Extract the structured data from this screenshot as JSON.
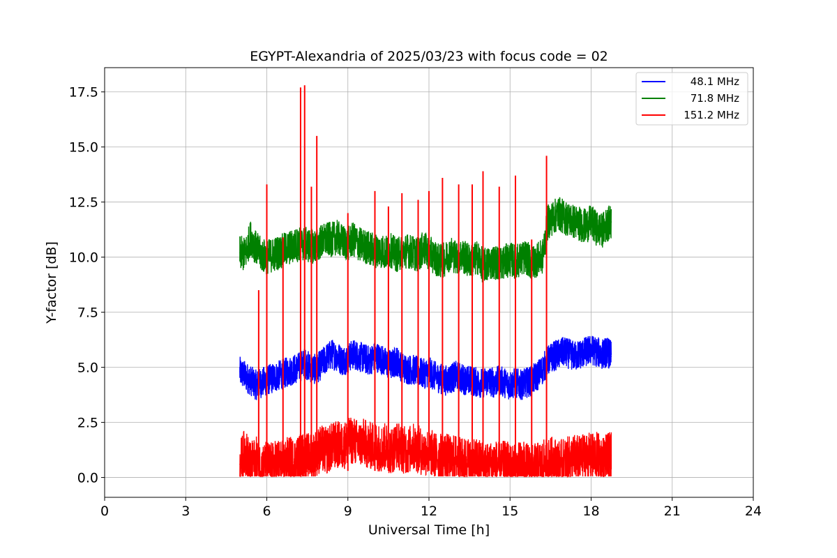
{
  "chart_data": {
    "type": "line",
    "title": "EGYPT-Alexandria of 2025/03/23 with focus code = 02",
    "xlabel": "Universal Time [h]",
    "ylabel": "Y-factor [dB]",
    "xlim": [
      0,
      24
    ],
    "ylim": [
      -0.9,
      18.6
    ],
    "xticks": [
      "0",
      "3",
      "6",
      "9",
      "12",
      "15",
      "18",
      "21",
      "24"
    ],
    "yticks": [
      "0.0",
      "2.5",
      "5.0",
      "7.5",
      "10.0",
      "12.5",
      "15.0",
      "17.5"
    ],
    "grid": true,
    "legend_position": "top-right",
    "series": [
      {
        "name": "48.1 MHz",
        "color": "#0000ff",
        "x": [
          5.0,
          5.2,
          5.4,
          5.6,
          5.8,
          6.0,
          6.2,
          6.4,
          6.6,
          6.8,
          7.0,
          7.2,
          7.4,
          7.6,
          7.8,
          8.0,
          8.2,
          8.4,
          8.6,
          8.8,
          9.0,
          9.2,
          9.4,
          9.6,
          9.8,
          10.0,
          10.2,
          10.4,
          10.6,
          10.8,
          11.0,
          11.2,
          11.4,
          11.6,
          11.8,
          12.0,
          12.2,
          12.4,
          12.6,
          12.8,
          13.0,
          13.2,
          13.4,
          13.6,
          13.8,
          14.0,
          14.2,
          14.4,
          14.6,
          14.8,
          15.0,
          15.2,
          15.4,
          15.6,
          15.8,
          16.0,
          16.2,
          16.4,
          16.6,
          16.8,
          17.0,
          17.2,
          17.4,
          17.6,
          17.8,
          18.0,
          18.2,
          18.4,
          18.6,
          18.75
        ],
        "y": [
          4.8,
          4.6,
          4.4,
          4.2,
          4.3,
          4.4,
          4.5,
          4.6,
          4.7,
          4.8,
          4.9,
          5.0,
          5.2,
          5.0,
          4.9,
          5.1,
          5.4,
          5.6,
          5.5,
          5.3,
          5.4,
          5.6,
          5.5,
          5.4,
          5.3,
          5.5,
          5.4,
          5.2,
          5.1,
          5.3,
          5.0,
          4.9,
          4.9,
          4.8,
          4.7,
          4.8,
          4.6,
          4.5,
          4.4,
          4.5,
          4.6,
          4.5,
          4.4,
          4.4,
          4.3,
          4.3,
          4.4,
          4.3,
          4.4,
          4.3,
          4.2,
          4.3,
          4.2,
          4.3,
          4.4,
          4.6,
          4.9,
          5.3,
          5.5,
          5.6,
          5.7,
          5.6,
          5.5,
          5.6,
          5.7,
          5.8,
          5.7,
          5.6,
          5.7,
          5.5
        ]
      },
      {
        "name": "71.8 MHz",
        "color": "#008000",
        "x": [
          5.0,
          5.2,
          5.4,
          5.6,
          5.8,
          6.0,
          6.2,
          6.4,
          6.6,
          6.8,
          7.0,
          7.2,
          7.4,
          7.6,
          7.8,
          8.0,
          8.2,
          8.4,
          8.6,
          8.8,
          9.0,
          9.2,
          9.4,
          9.6,
          9.8,
          10.0,
          10.2,
          10.4,
          10.6,
          10.8,
          11.0,
          11.2,
          11.4,
          11.6,
          11.8,
          12.0,
          12.2,
          12.4,
          12.6,
          12.8,
          13.0,
          13.2,
          13.4,
          13.6,
          13.8,
          14.0,
          14.2,
          14.4,
          14.6,
          14.8,
          15.0,
          15.2,
          15.4,
          15.6,
          15.8,
          16.0,
          16.2,
          16.4,
          16.6,
          16.8,
          17.0,
          17.2,
          17.4,
          17.6,
          17.8,
          18.0,
          18.2,
          18.4,
          18.6,
          18.75
        ],
        "y": [
          10.2,
          10.1,
          10.9,
          10.4,
          10.1,
          10.0,
          10.1,
          10.2,
          10.3,
          10.4,
          10.5,
          10.6,
          10.6,
          10.5,
          10.5,
          10.7,
          10.8,
          10.8,
          10.9,
          10.7,
          10.6,
          10.8,
          10.6,
          10.5,
          10.4,
          10.3,
          10.3,
          10.2,
          10.3,
          10.1,
          10.2,
          10.3,
          10.2,
          10.1,
          10.4,
          10.2,
          10.0,
          9.8,
          9.9,
          10.2,
          10.0,
          10.1,
          9.9,
          9.8,
          10.0,
          9.6,
          9.7,
          9.8,
          9.7,
          9.8,
          9.9,
          9.8,
          9.9,
          10.0,
          9.7,
          9.9,
          10.0,
          11.6,
          11.8,
          12.0,
          11.8,
          11.7,
          11.6,
          11.5,
          11.4,
          11.6,
          11.3,
          11.2,
          11.5,
          11.6
        ]
      },
      {
        "name": "151.2 MHz",
        "color": "#ff0000",
        "x": [
          5.0,
          5.2,
          5.4,
          5.6,
          5.8,
          6.0,
          6.2,
          6.4,
          6.6,
          6.8,
          7.0,
          7.2,
          7.4,
          7.6,
          7.8,
          8.0,
          8.2,
          8.4,
          8.6,
          8.8,
          9.0,
          9.2,
          9.4,
          9.6,
          9.8,
          10.0,
          10.2,
          10.4,
          10.6,
          10.8,
          11.0,
          11.2,
          11.4,
          11.6,
          11.8,
          12.0,
          12.2,
          12.4,
          12.6,
          12.8,
          13.0,
          13.2,
          13.4,
          13.6,
          13.8,
          14.0,
          14.2,
          14.4,
          14.6,
          14.8,
          15.0,
          15.2,
          15.4,
          15.6,
          15.8,
          16.0,
          16.2,
          16.4,
          16.6,
          16.8,
          17.0,
          17.2,
          17.4,
          17.6,
          17.8,
          18.0,
          18.2,
          18.4,
          18.6,
          18.75
        ],
        "y": [
          0.6,
          1.2,
          0.5,
          0.8,
          0.4,
          0.6,
          0.5,
          0.7,
          0.6,
          0.8,
          0.7,
          0.9,
          1.0,
          0.9,
          1.1,
          1.3,
          1.2,
          1.4,
          1.5,
          1.4,
          1.6,
          1.7,
          1.5,
          1.6,
          1.4,
          1.5,
          1.3,
          1.4,
          1.2,
          1.5,
          1.3,
          1.2,
          1.4,
          1.3,
          1.1,
          1.2,
          1.0,
          0.9,
          1.0,
          0.8,
          0.9,
          0.7,
          0.8,
          0.6,
          0.7,
          0.6,
          0.5,
          0.7,
          0.5,
          0.6,
          0.5,
          0.4,
          0.6,
          0.5,
          0.4,
          0.5,
          0.6,
          0.7,
          0.8,
          0.6,
          0.7,
          0.8,
          0.9,
          0.8,
          1.0,
          0.9,
          1.0,
          0.8,
          0.9,
          1.0
        ]
      }
    ],
    "spikes_151_2_MHz": [
      {
        "x": 5.7,
        "y": 8.5
      },
      {
        "x": 6.0,
        "y": 13.3
      },
      {
        "x": 6.6,
        "y": 10.9
      },
      {
        "x": 7.25,
        "y": 17.7
      },
      {
        "x": 7.4,
        "y": 17.8
      },
      {
        "x": 7.65,
        "y": 13.2
      },
      {
        "x": 7.85,
        "y": 15.5
      },
      {
        "x": 9.0,
        "y": 12.0
      },
      {
        "x": 10.0,
        "y": 13.0
      },
      {
        "x": 10.5,
        "y": 12.3
      },
      {
        "x": 11.0,
        "y": 12.9
      },
      {
        "x": 11.6,
        "y": 12.6
      },
      {
        "x": 12.0,
        "y": 13.0
      },
      {
        "x": 12.5,
        "y": 13.6
      },
      {
        "x": 13.1,
        "y": 13.3
      },
      {
        "x": 13.6,
        "y": 13.3
      },
      {
        "x": 14.0,
        "y": 13.9
      },
      {
        "x": 14.6,
        "y": 13.2
      },
      {
        "x": 15.2,
        "y": 13.7
      },
      {
        "x": 15.8,
        "y": 10.8
      },
      {
        "x": 16.35,
        "y": 14.6
      }
    ]
  }
}
